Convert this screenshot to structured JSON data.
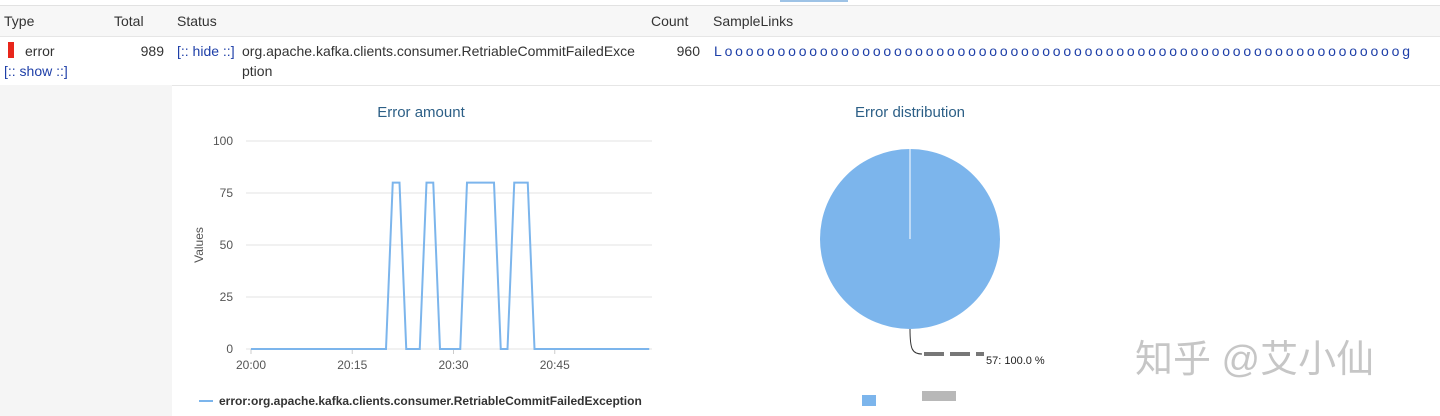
{
  "table": {
    "headers": [
      "Type",
      "Total",
      "Status",
      "Count",
      "SampleLinks"
    ],
    "row": {
      "type": "error",
      "show": "[:: show ::]",
      "total": 989,
      "hide": "[:: hide ::]",
      "status": "org.apache.kafka.clients.consumer.RetriableCommitFailedException",
      "count": 960,
      "sample_link": "Loooooooooooooooooooooooooooooooooooooooooooooooooooooooooooooooog"
    }
  },
  "chart_data": [
    {
      "type": "line",
      "title": "Error amount",
      "y_label": "Values",
      "categories": [
        "20:00",
        null,
        null,
        null,
        null,
        null,
        null,
        null,
        null,
        null,
        null,
        null,
        null,
        null,
        null,
        "20:15",
        null,
        null,
        null,
        null,
        null,
        null,
        null,
        null,
        null,
        null,
        null,
        null,
        null,
        null,
        "20:30",
        null,
        null,
        null,
        null,
        null,
        null,
        null,
        null,
        null,
        null,
        null,
        null,
        null,
        null,
        "20:45",
        null,
        null,
        null,
        null,
        null,
        null,
        null,
        null,
        null,
        null,
        null,
        null,
        null,
        null
      ],
      "series": [
        {
          "name": "error:org.apache.kafka.clients.consumer.RetriableCommitFailedException",
          "color": "#7cb5ec",
          "values": [
            0,
            0,
            0,
            0,
            0,
            0,
            0,
            0,
            0,
            0,
            0,
            0,
            0,
            0,
            0,
            0,
            0,
            0,
            0,
            0,
            0,
            80,
            80,
            0,
            0,
            0,
            80,
            80,
            0,
            0,
            0,
            0,
            80,
            80,
            80,
            80,
            80,
            0,
            0,
            80,
            80,
            80,
            0,
            0,
            0,
            0,
            0,
            0,
            0,
            0,
            0,
            0,
            0,
            0,
            0,
            0,
            0,
            0,
            0,
            0
          ]
        }
      ],
      "ylim": [
        0,
        100
      ],
      "yticks": [
        0,
        25,
        50,
        75,
        100
      ],
      "grid": true
    },
    {
      "type": "pie",
      "title": "Error distribution",
      "values": [
        100
      ],
      "value_labels": [
        "57: 100.0 %"
      ],
      "colors": [
        "#7cb5ec"
      ]
    }
  ],
  "watermark": "知乎 @艾小仙"
}
